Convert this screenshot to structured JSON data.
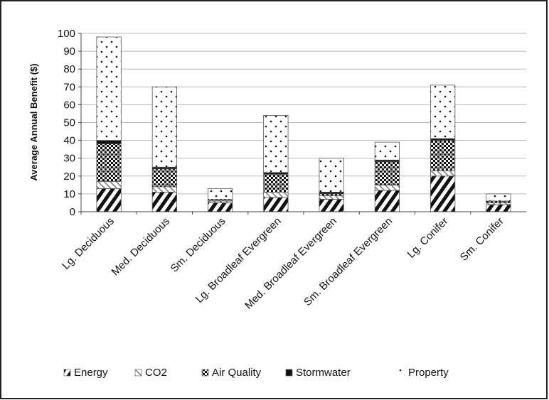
{
  "chart_data": {
    "type": "bar",
    "stacked": true,
    "title": "",
    "xlabel": "",
    "ylabel": "Average Annual Benefit ($)",
    "ylim": [
      0,
      100
    ],
    "yticks": [
      0,
      10,
      20,
      30,
      40,
      50,
      60,
      70,
      80,
      90,
      100
    ],
    "grid": true,
    "legend_position": "bottom",
    "categories": [
      "Lg. Deciduous",
      "Med. Deciduous",
      "Sm. Deciduous",
      "Lg. Broadleaf Evergreen",
      "Med. Broadleaf Evergreen",
      "Sm. Broadleaf Evergreen",
      "Lg. Conifer",
      "Sm. Conifer"
    ],
    "series": [
      {
        "name": "Energy",
        "pattern": "diagonal-stripes",
        "values": [
          13,
          11,
          5,
          8,
          7,
          12,
          20,
          4
        ]
      },
      {
        "name": "CO2",
        "pattern": "light-diagonal",
        "values": [
          4,
          3,
          1,
          3,
          2,
          3,
          3,
          1
        ]
      },
      {
        "name": "Air Quality",
        "pattern": "checker",
        "values": [
          21,
          10,
          1,
          10,
          1,
          13,
          17,
          1
        ]
      },
      {
        "name": "Stormwater",
        "pattern": "solid-black",
        "values": [
          2,
          1,
          0,
          1,
          1,
          1,
          1,
          0
        ]
      },
      {
        "name": "Property",
        "pattern": "sparse-dots",
        "values": [
          58,
          45,
          6,
          32,
          19,
          10,
          30,
          4
        ]
      }
    ]
  }
}
